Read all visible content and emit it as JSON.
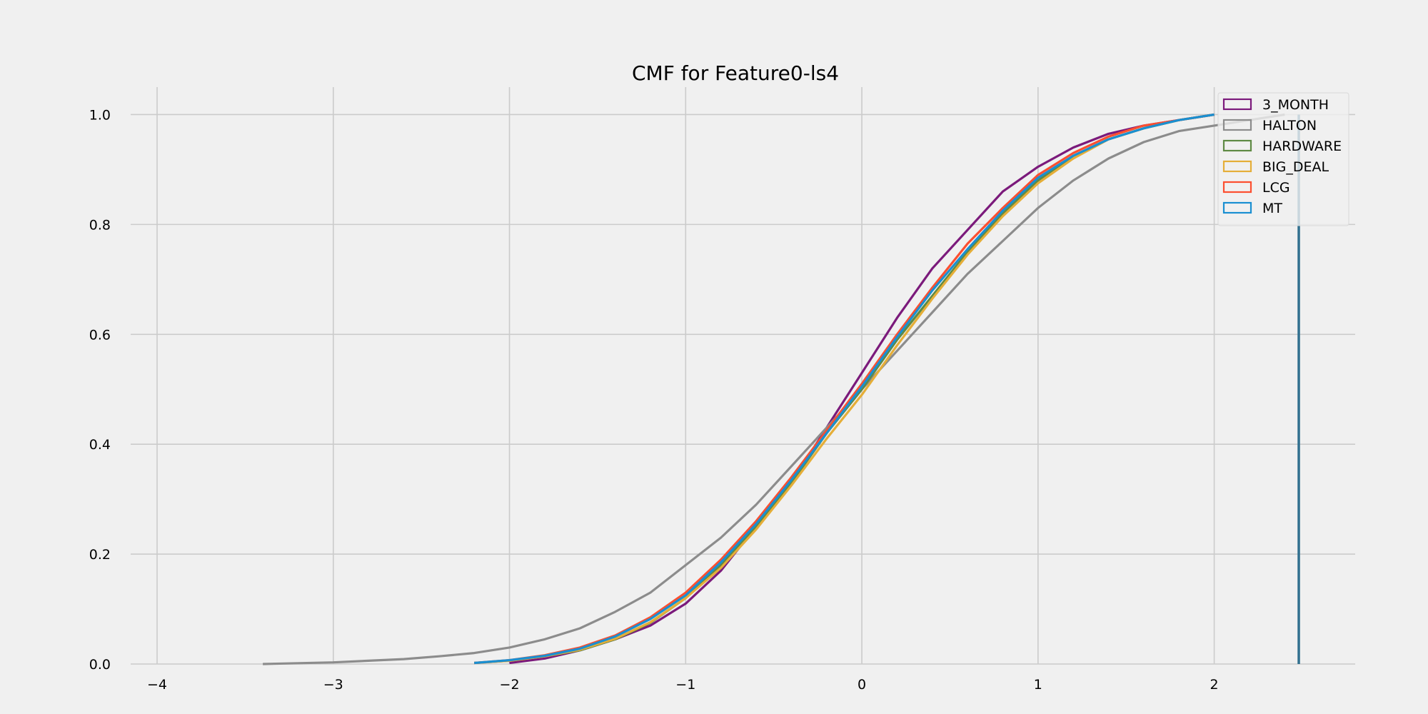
{
  "chart_data": {
    "type": "line",
    "title": "CMF for Feature0-ls4",
    "xlabel": "",
    "ylabel": "",
    "xlim": [
      -4.15,
      2.8
    ],
    "ylim": [
      0.0,
      1.05
    ],
    "x_ticks": [
      -4,
      -3,
      -2,
      -1,
      0,
      1,
      2
    ],
    "x_tick_labels": [
      "−4",
      "−3",
      "−2",
      "−1",
      "0",
      "1",
      "2"
    ],
    "y_ticks": [
      0.0,
      0.2,
      0.4,
      0.6,
      0.8,
      1.0
    ],
    "y_tick_labels": [
      "0.0",
      "0.2",
      "0.4",
      "0.6",
      "0.8",
      "1.0"
    ],
    "grid": true,
    "legend_position": "top-right",
    "vertical_marker": {
      "x": 2.48,
      "y_range": [
        0.0,
        1.0
      ],
      "color": "#31708f"
    },
    "series": [
      {
        "name": "3_MONTH",
        "color": "#7b1a7b",
        "x": [
          -2.0,
          -1.8,
          -1.6,
          -1.4,
          -1.2,
          -1.0,
          -0.8,
          -0.6,
          -0.4,
          -0.2,
          0.0,
          0.2,
          0.4,
          0.6,
          0.8,
          1.0,
          1.2,
          1.4,
          1.6,
          1.8,
          2.0
        ],
        "y": [
          0.002,
          0.01,
          0.025,
          0.045,
          0.07,
          0.11,
          0.17,
          0.25,
          0.33,
          0.43,
          0.53,
          0.63,
          0.72,
          0.79,
          0.86,
          0.905,
          0.94,
          0.965,
          0.98,
          0.99,
          1.0
        ]
      },
      {
        "name": "HALTON",
        "color": "#8c8c8c",
        "x": [
          -3.4,
          -3.0,
          -2.8,
          -2.6,
          -2.4,
          -2.2,
          -2.0,
          -1.8,
          -1.6,
          -1.4,
          -1.2,
          -1.0,
          -0.8,
          -0.6,
          -0.4,
          -0.2,
          0.0,
          0.2,
          0.4,
          0.6,
          0.8,
          1.0,
          1.2,
          1.4,
          1.6,
          1.8,
          2.0,
          2.2,
          2.4
        ],
        "y": [
          0.0,
          0.003,
          0.006,
          0.009,
          0.014,
          0.02,
          0.03,
          0.045,
          0.065,
          0.095,
          0.13,
          0.18,
          0.23,
          0.29,
          0.36,
          0.43,
          0.5,
          0.57,
          0.64,
          0.71,
          0.77,
          0.83,
          0.88,
          0.92,
          0.95,
          0.97,
          0.98,
          0.99,
          1.0
        ]
      },
      {
        "name": "HARDWARE",
        "color": "#5e8a44",
        "x": [
          -2.2,
          -2.0,
          -1.8,
          -1.6,
          -1.4,
          -1.2,
          -1.0,
          -0.8,
          -0.6,
          -0.4,
          -0.2,
          0.0,
          0.2,
          0.4,
          0.6,
          0.8,
          1.0,
          1.2,
          1.4,
          1.6,
          1.8,
          2.0
        ],
        "y": [
          0.002,
          0.006,
          0.014,
          0.025,
          0.045,
          0.075,
          0.12,
          0.18,
          0.25,
          0.33,
          0.42,
          0.5,
          0.59,
          0.67,
          0.75,
          0.82,
          0.88,
          0.925,
          0.955,
          0.975,
          0.99,
          1.0
        ]
      },
      {
        "name": "BIG_DEAL",
        "color": "#e5ae38",
        "x": [
          -2.2,
          -2.0,
          -1.8,
          -1.6,
          -1.4,
          -1.2,
          -1.0,
          -0.8,
          -0.6,
          -0.4,
          -0.2,
          0.0,
          0.2,
          0.4,
          0.6,
          0.8,
          1.0,
          1.2,
          1.4,
          1.6,
          1.8,
          2.0
        ],
        "y": [
          0.002,
          0.006,
          0.014,
          0.026,
          0.046,
          0.076,
          0.12,
          0.175,
          0.245,
          0.325,
          0.41,
          0.49,
          0.58,
          0.665,
          0.745,
          0.815,
          0.875,
          0.92,
          0.955,
          0.975,
          0.99,
          1.0
        ]
      },
      {
        "name": "LCG",
        "color": "#fc4f30",
        "x": [
          -2.2,
          -2.0,
          -1.8,
          -1.6,
          -1.4,
          -1.2,
          -1.0,
          -0.8,
          -0.6,
          -0.4,
          -0.2,
          0.0,
          0.2,
          0.4,
          0.6,
          0.8,
          1.0,
          1.2,
          1.4,
          1.6,
          1.8,
          2.0
        ],
        "y": [
          0.002,
          0.007,
          0.016,
          0.03,
          0.052,
          0.085,
          0.13,
          0.19,
          0.26,
          0.34,
          0.425,
          0.51,
          0.6,
          0.685,
          0.765,
          0.83,
          0.89,
          0.93,
          0.96,
          0.98,
          0.99,
          1.0
        ]
      },
      {
        "name": "MT",
        "color": "#1a8fd1",
        "x": [
          -2.2,
          -2.0,
          -1.8,
          -1.6,
          -1.4,
          -1.2,
          -1.0,
          -0.8,
          -0.6,
          -0.4,
          -0.2,
          0.0,
          0.2,
          0.4,
          0.6,
          0.8,
          1.0,
          1.2,
          1.4,
          1.6,
          1.8,
          2.0
        ],
        "y": [
          0.002,
          0.007,
          0.015,
          0.028,
          0.05,
          0.082,
          0.125,
          0.185,
          0.255,
          0.335,
          0.42,
          0.505,
          0.595,
          0.68,
          0.755,
          0.825,
          0.885,
          0.925,
          0.955,
          0.975,
          0.99,
          1.0
        ]
      }
    ]
  }
}
